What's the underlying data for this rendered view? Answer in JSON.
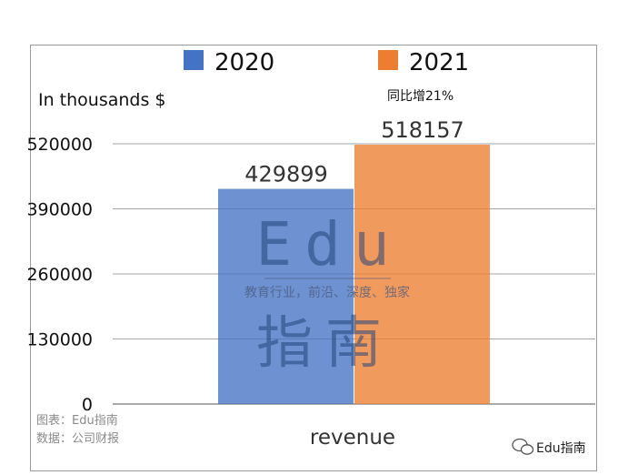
{
  "chart_data": {
    "type": "bar",
    "categories": [
      "revenue"
    ],
    "series": [
      {
        "name": "2020",
        "values": [
          429899
        ],
        "color": "#4472c4"
      },
      {
        "name": "2021",
        "values": [
          518157
        ],
        "color": "#ed7d31"
      }
    ],
    "ylabel": "In thousands $",
    "xlabel": "revenue",
    "ylim": [
      0,
      520000
    ],
    "yticks": [
      0,
      130000,
      260000,
      390000,
      520000
    ],
    "grid": true,
    "legend": "top",
    "annotation": "同比增21%"
  },
  "source": {
    "chart_line": "图表：Edu指南",
    "data_line": "数据：公司财报"
  },
  "watermark": {
    "line1": "Edu",
    "tagline": "教育行业，前沿、深度、独家",
    "line2": "指南"
  },
  "corner_brand": "Edu指南"
}
